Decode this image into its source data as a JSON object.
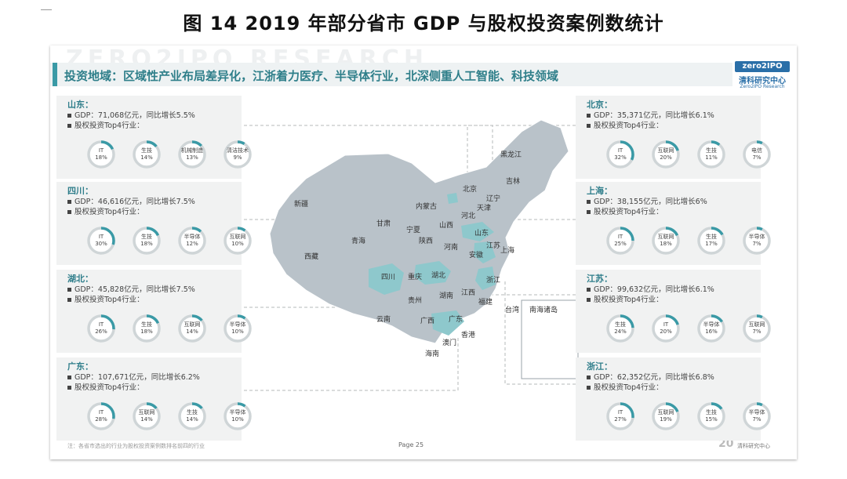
{
  "title": "图 14 2019 年部分省市 GDP 与股权投资案例数统计",
  "slide": {
    "watermark": "ZERO2IPO RESEARCH",
    "header": "投资地域：区域性产业布局差异化，江浙着力医疗、半导体行业，北深侧重人工智能、科技领域",
    "logo": {
      "box": "zero2IPO",
      "cn": "清科研究中心",
      "en": "Zero2IPO Research"
    },
    "accent_color": "#3a9aa6",
    "ring_track_color": "#cfd5d7",
    "map_color": "#b9c2c9",
    "map_highlight_color": "#8ec8cc"
  },
  "provinces": [
    {
      "name": "山东：",
      "gdp": "GDP：71,068亿元，同比增长5.5%",
      "top4": "股权投资Top4行业：",
      "industries": [
        {
          "label": "IT",
          "pct": "18%",
          "v": 18
        },
        {
          "label": "生技",
          "pct": "14%",
          "v": 14
        },
        {
          "label": "机械制造",
          "pct": "13%",
          "v": 13
        },
        {
          "label": "清洁技术",
          "pct": "9%",
          "v": 9
        }
      ]
    },
    {
      "name": "四川：",
      "gdp": "GDP：46,616亿元，同比增长7.5%",
      "top4": "股权投资Top4行业：",
      "industries": [
        {
          "label": "IT",
          "pct": "30%",
          "v": 30
        },
        {
          "label": "生技",
          "pct": "18%",
          "v": 18
        },
        {
          "label": "半导体",
          "pct": "12%",
          "v": 12
        },
        {
          "label": "互联网",
          "pct": "10%",
          "v": 10
        }
      ]
    },
    {
      "name": "湖北：",
      "gdp": "GDP：45,828亿元，同比增长7.5%",
      "top4": "股权投资Top4行业：",
      "industries": [
        {
          "label": "IT",
          "pct": "26%",
          "v": 26
        },
        {
          "label": "生技",
          "pct": "18%",
          "v": 18
        },
        {
          "label": "互联网",
          "pct": "14%",
          "v": 14
        },
        {
          "label": "半导体",
          "pct": "10%",
          "v": 10
        }
      ]
    },
    {
      "name": "广东：",
      "gdp": "GDP：107,671亿元，同比增长6.2%",
      "top4": "股权投资Top4行业：",
      "industries": [
        {
          "label": "IT",
          "pct": "28%",
          "v": 28
        },
        {
          "label": "互联网",
          "pct": "14%",
          "v": 14
        },
        {
          "label": "生技",
          "pct": "14%",
          "v": 14
        },
        {
          "label": "半导体",
          "pct": "10%",
          "v": 10
        }
      ]
    },
    {
      "name": "北京：",
      "gdp": "GDP：35,371亿元，同比增长6.1%",
      "top4": "股权投资Top4行业：",
      "industries": [
        {
          "label": "IT",
          "pct": "32%",
          "v": 32
        },
        {
          "label": "互联网",
          "pct": "20%",
          "v": 20
        },
        {
          "label": "生技",
          "pct": "11%",
          "v": 11
        },
        {
          "label": "电信",
          "pct": "7%",
          "v": 7
        }
      ]
    },
    {
      "name": "上海：",
      "gdp": "GDP：38,155亿元，同比增长6%",
      "top4": "股权投资Top4行业：",
      "industries": [
        {
          "label": "IT",
          "pct": "25%",
          "v": 25
        },
        {
          "label": "互联网",
          "pct": "18%",
          "v": 18
        },
        {
          "label": "生技",
          "pct": "17%",
          "v": 17
        },
        {
          "label": "半导体",
          "pct": "7%",
          "v": 7
        }
      ]
    },
    {
      "name": "江苏：",
      "gdp": "GDP：99,632亿元，同比增长6.1%",
      "top4": "股权投资Top4行业：",
      "industries": [
        {
          "label": "生技",
          "pct": "24%",
          "v": 24
        },
        {
          "label": "IT",
          "pct": "20%",
          "v": 20
        },
        {
          "label": "半导体",
          "pct": "16%",
          "v": 16
        },
        {
          "label": "互联网",
          "pct": "7%",
          "v": 7
        }
      ]
    },
    {
      "name": "浙江：",
      "gdp": "GDP：62,352亿元，同比增长6.8%",
      "top4": "股权投资Top4行业：",
      "industries": [
        {
          "label": "IT",
          "pct": "27%",
          "v": 27
        },
        {
          "label": "互联网",
          "pct": "19%",
          "v": 19
        },
        {
          "label": "生技",
          "pct": "15%",
          "v": 15
        },
        {
          "label": "半导体",
          "pct": "7%",
          "v": 7
        }
      ]
    }
  ],
  "map_labels": [
    "黑龙江",
    "吉林",
    "辽宁",
    "北京",
    "天津",
    "内蒙古",
    "河北",
    "山西",
    "新疆",
    "甘肃",
    "宁夏",
    "陕西",
    "山东",
    "河南",
    "江苏",
    "安徽",
    "上海",
    "青海",
    "西藏",
    "四川",
    "重庆",
    "湖北",
    "浙江",
    "江西",
    "湖南",
    "贵州",
    "福建",
    "台湾",
    "云南",
    "广西",
    "广东",
    "香港",
    "澳门",
    "海南",
    "南海诸岛"
  ],
  "footer": {
    "note": "注：各省市选出的行业为股权投资案例数排名前四的行业",
    "page": "Page  25",
    "logo_mark": "20",
    "logo_text": "清科研究中心"
  }
}
